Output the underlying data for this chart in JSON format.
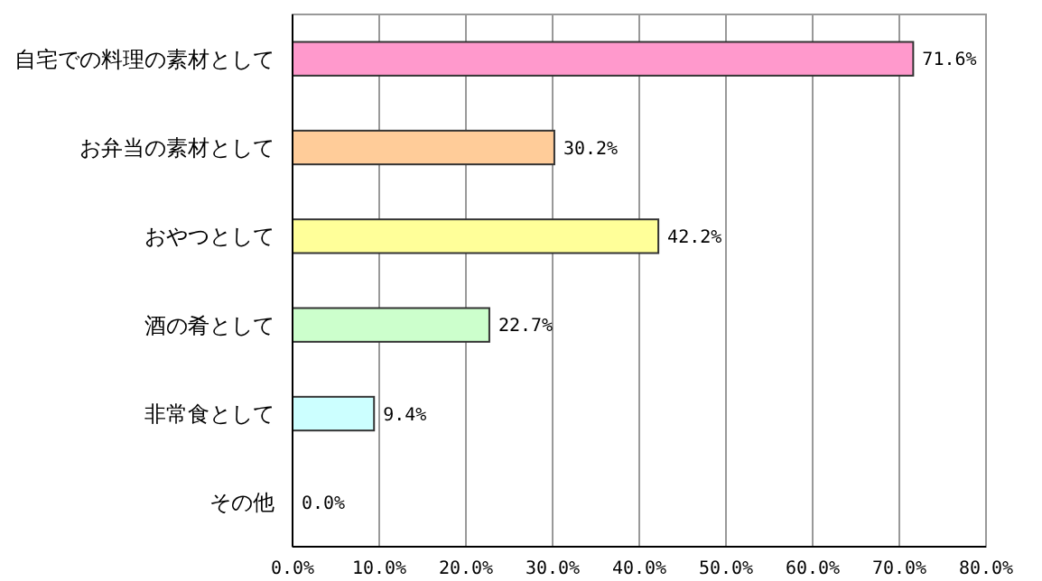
{
  "chart_data": {
    "type": "bar",
    "orientation": "horizontal",
    "categories": [
      "自宅での料理の素材として",
      "お弁当の素材として",
      "おやつとして",
      "酒の肴として",
      "非常食として",
      "その他"
    ],
    "values": [
      71.6,
      30.2,
      42.2,
      22.7,
      9.4,
      0.0
    ],
    "colors": [
      "#ff99cc",
      "#ffcc99",
      "#ffff99",
      "#ccffcc",
      "#ccffff",
      "#99ccff"
    ],
    "value_labels": [
      "71.6%",
      "30.2%",
      "42.2%",
      "22.7%",
      "9.4%",
      "0.0%"
    ],
    "xlim": [
      0,
      80
    ],
    "xticks": [
      {
        "value": 0,
        "label": "0.0%"
      },
      {
        "value": 10,
        "label": "10.0%"
      },
      {
        "value": 20,
        "label": "20.0%"
      },
      {
        "value": 30,
        "label": "30.0%"
      },
      {
        "value": 40,
        "label": "40.0%"
      },
      {
        "value": 50,
        "label": "50.0%"
      },
      {
        "value": 60,
        "label": "60.0%"
      },
      {
        "value": 70,
        "label": "70.0%"
      },
      {
        "value": 80,
        "label": "80.0%"
      }
    ],
    "grid": "x"
  }
}
